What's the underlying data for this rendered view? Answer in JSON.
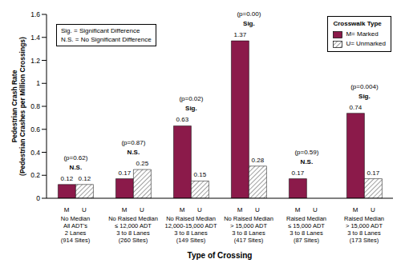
{
  "chart_data": {
    "type": "bar",
    "y_label": "Pedestrian Crash Rate\n(Pedestrian Crashes per Million Crossings)",
    "x_label": "Type of Crossing",
    "categories": [
      "No Median\nAll ADT's\n2 Lanes\n(914 Sites)",
      "No Raised Median\n≤ 12,000 ADT\n3 to 8 Lanes\n(260 Sites)",
      "No Raised Median\n12,000-15,000 ADT\n3 to 8 Lanes\n(149 Sites)",
      "No Raised Median\n> 15,000 ADT\n3 to 8 Lanes\n(417 Sites)",
      "Raised Median\n≤ 15,000 ADT\n3 to 8 Lanes\n(87 Sites)",
      "Raised Median\n> 15,000 ADT\n3 to 8 Lanes\n(173 Sites)"
    ],
    "series": [
      {
        "name": "M= Marked",
        "color": "#8b1a4a",
        "values": [
          0.12,
          0.17,
          0.63,
          1.37,
          0.17,
          0.74
        ]
      },
      {
        "name": "U= Unmarked",
        "color": "#7f7f7f",
        "values": [
          0.12,
          0.25,
          0.15,
          0.28,
          0,
          0.17
        ]
      }
    ],
    "bar_labels": [
      "M",
      "U"
    ],
    "p_values": [
      "(p=0.62)",
      "(p=0.87)",
      "(p=0.02)",
      "(p=0.00)",
      "(p=0.59)",
      "(p=0.004)"
    ],
    "significance": [
      "N.S.",
      "N.S.",
      "Sig.",
      "Sig.",
      "N.S.",
      "Sig."
    ],
    "annotations": [
      "Sig. = Significant Difference",
      "N.S. = No Significant Difference"
    ],
    "legend_title": "Crosswalk Type",
    "legend": "upper right",
    "ylim": [
      0,
      1.6
    ],
    "yticks": [
      0,
      0.2,
      0.4,
      0.6,
      0.8,
      1,
      1.2,
      1.4,
      1.6
    ],
    "data_labels": true,
    "grid": false
  }
}
